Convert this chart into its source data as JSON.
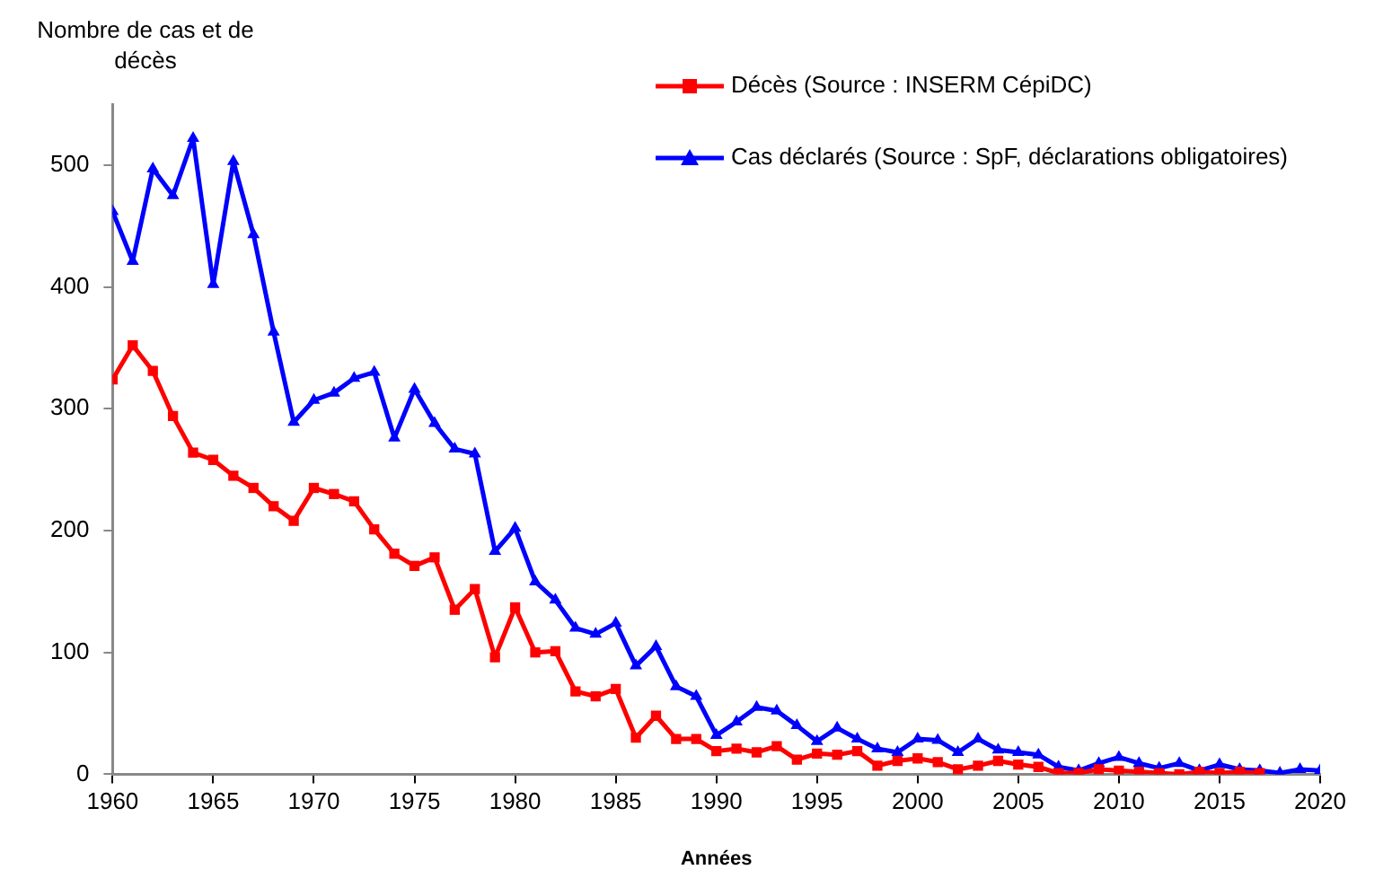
{
  "chart_data": {
    "type": "line",
    "ylabel": "Nombre de cas et de décès",
    "xlabel": "Années",
    "x": [
      1960,
      1961,
      1962,
      1963,
      1964,
      1965,
      1966,
      1967,
      1968,
      1969,
      1970,
      1971,
      1972,
      1973,
      1974,
      1975,
      1976,
      1977,
      1978,
      1979,
      1980,
      1981,
      1982,
      1983,
      1984,
      1985,
      1986,
      1987,
      1988,
      1989,
      1990,
      1991,
      1992,
      1993,
      1994,
      1995,
      1996,
      1997,
      1998,
      1999,
      2000,
      2001,
      2002,
      2003,
      2004,
      2005,
      2006,
      2007,
      2008,
      2009,
      2010,
      2011,
      2012,
      2013,
      2014,
      2015,
      2016,
      2017,
      2018,
      2019,
      2020
    ],
    "series": [
      {
        "name": "Décès (Source : INSERM CépiDC)",
        "color": "#ff0000",
        "marker": "square",
        "x": [
          1960,
          1961,
          1962,
          1963,
          1964,
          1965,
          1966,
          1967,
          1968,
          1969,
          1970,
          1971,
          1972,
          1973,
          1974,
          1975,
          1976,
          1977,
          1978,
          1979,
          1980,
          1981,
          1982,
          1983,
          1984,
          1985,
          1986,
          1987,
          1988,
          1989,
          1990,
          1991,
          1992,
          1993,
          1994,
          1995,
          1996,
          1997,
          1998,
          1999,
          2000,
          2001,
          2002,
          2003,
          2004,
          2005,
          2006,
          2007,
          2008,
          2009,
          2010,
          2011,
          2012,
          2013,
          2014,
          2015,
          2016,
          2017
        ],
        "values": [
          324,
          352,
          331,
          294,
          264,
          258,
          245,
          235,
          220,
          208,
          235,
          230,
          224,
          201,
          181,
          171,
          178,
          135,
          152,
          96,
          137,
          100,
          101,
          68,
          64,
          70,
          30,
          48,
          29,
          29,
          19,
          21,
          18,
          23,
          12,
          17,
          16,
          19,
          7,
          11,
          13,
          10,
          4,
          7,
          11,
          8,
          6,
          1,
          1,
          4,
          3,
          2,
          1,
          0,
          2,
          1,
          2,
          1
        ]
      },
      {
        "name": "Cas déclarés (Source : SpF, déclarations obligatoires)",
        "color": "#0000ff",
        "marker": "triangle",
        "values": [
          462,
          421,
          497,
          475,
          522,
          402,
          503,
          443,
          363,
          289,
          307,
          313,
          325,
          330,
          276,
          316,
          288,
          267,
          263,
          183,
          202,
          158,
          143,
          120,
          115,
          124,
          89,
          105,
          72,
          64,
          32,
          43,
          55,
          52,
          40,
          27,
          38,
          29,
          21,
          18,
          29,
          28,
          18,
          29,
          20,
          18,
          16,
          6,
          3,
          9,
          14,
          9,
          5,
          9,
          3,
          8,
          4,
          3,
          1,
          4,
          3
        ]
      }
    ],
    "xlim": [
      1960,
      2020
    ],
    "xticks": [
      1960,
      1965,
      1970,
      1975,
      1980,
      1985,
      1990,
      1995,
      2000,
      2005,
      2010,
      2015,
      2020
    ],
    "ylim": [
      0,
      550
    ],
    "yticks": [
      0,
      100,
      200,
      300,
      400,
      500
    ],
    "grid": false,
    "legend": "top right",
    "line_style": "solid"
  }
}
